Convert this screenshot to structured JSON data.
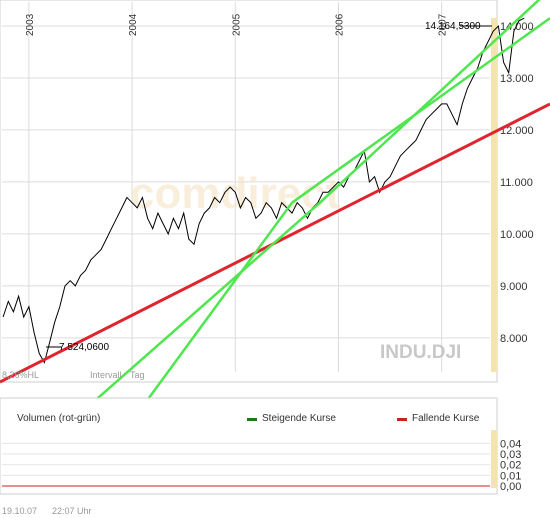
{
  "chart_data": [
    {
      "type": "line",
      "symbol": "INDU.DJI",
      "watermark": "comdirect",
      "x_ticks": [
        "2003",
        "2004",
        "2005",
        "2006",
        "2007"
      ],
      "x_tick_values": [
        2003.0,
        2004.0,
        2005.0,
        2006.0,
        2007.0
      ],
      "x_range": [
        2002.72,
        2008.05
      ],
      "y_ticks": [
        "8.000",
        "9.000",
        "10.000",
        "11.000",
        "12.000",
        "13.000",
        "14.000"
      ],
      "y_tick_values": [
        8000,
        9000,
        10000,
        11000,
        12000,
        13000,
        14000
      ],
      "ylim": [
        7150,
        14500
      ],
      "grid": true,
      "series": [
        {
          "x": [
            2002.75,
            2002.8,
            2002.85,
            2002.9,
            2002.95,
            2003.0,
            2003.05,
            2003.1,
            2003.15,
            2003.2,
            2003.25,
            2003.3,
            2003.35,
            2003.4,
            2003.45,
            2003.5,
            2003.55,
            2003.6,
            2003.65,
            2003.7,
            2003.75,
            2003.8,
            2003.85,
            2003.9,
            2003.95,
            2004.0,
            2004.05,
            2004.1,
            2004.15,
            2004.2,
            2004.25,
            2004.3,
            2004.35,
            2004.4,
            2004.45,
            2004.5,
            2004.55,
            2004.6,
            2004.65,
            2004.7,
            2004.75,
            2004.8,
            2004.85,
            2004.9,
            2004.95,
            2005.0,
            2005.05,
            2005.1,
            2005.15,
            2005.2,
            2005.25,
            2005.3,
            2005.35,
            2005.4,
            2005.45,
            2005.5,
            2005.55,
            2005.6,
            2005.65,
            2005.7,
            2005.75,
            2005.8,
            2005.85,
            2005.9,
            2005.95,
            2006.0,
            2006.05,
            2006.1,
            2006.15,
            2006.2,
            2006.25,
            2006.3,
            2006.35,
            2006.4,
            2006.45,
            2006.5,
            2006.55,
            2006.6,
            2006.65,
            2006.7,
            2006.75,
            2006.8,
            2006.85,
            2006.9,
            2006.95,
            2007.0,
            2007.05,
            2007.1,
            2007.15,
            2007.2,
            2007.25,
            2007.3,
            2007.35,
            2007.4,
            2007.45,
            2007.5,
            2007.55,
            2007.6,
            2007.65,
            2007.7,
            2007.75,
            2007.8
          ],
          "values": [
            8400,
            8700,
            8500,
            8800,
            8400,
            8600,
            8100,
            7700,
            7524,
            7900,
            8300,
            8600,
            9000,
            9100,
            9000,
            9200,
            9300,
            9500,
            9600,
            9700,
            9900,
            10100,
            10300,
            10500,
            10700,
            10600,
            10500,
            10700,
            10300,
            10100,
            10400,
            10200,
            10000,
            10300,
            10100,
            10400,
            9900,
            9800,
            10200,
            10400,
            10500,
            10700,
            10600,
            10800,
            10900,
            10800,
            10500,
            10700,
            10600,
            10300,
            10400,
            10600,
            10500,
            10300,
            10600,
            10500,
            10400,
            10600,
            10500,
            10300,
            10500,
            10600,
            10800,
            10800,
            10900,
            11000,
            10900,
            11100,
            11200,
            11400,
            11600,
            11000,
            11100,
            10800,
            11000,
            11100,
            11300,
            11500,
            11600,
            11700,
            11800,
            12000,
            12200,
            12300,
            12400,
            12500,
            12500,
            12300,
            12100,
            12500,
            12800,
            13000,
            13200,
            13500,
            13700,
            13900,
            14000,
            13300,
            13100,
            13900,
            14100,
            14150
          ]
        }
      ],
      "annotations": [
        "14.164,5300",
        "7.524,0600"
      ],
      "trendlines": [
        {
          "color": "#e0242e",
          "from": [
            2002.72,
            7150
          ],
          "to": [
            2008.05,
            12500
          ]
        },
        {
          "color": "#4fe64f",
          "from": [
            2005.82,
            10600
          ],
          "to": [
            2008.05,
            14700
          ]
        },
        {
          "color": "#4fe64f",
          "from": [
            2005.55,
            10600
          ],
          "to": [
            2008.05,
            14150
          ]
        }
      ],
      "footer_left": "8,26%HL",
      "footer_interval": "Intervall",
      "footer_tag": "Tag"
    },
    {
      "type": "bar",
      "title": "Volumen (rot-grün)",
      "legend": [
        "Steigende Kurse",
        "Fallende Kurse"
      ],
      "legend_colors": [
        "#1a7a1a",
        "#cc1f1f"
      ],
      "y_ticks": [
        "0,04",
        "0,03",
        "0,02",
        "0,01",
        "0,00"
      ],
      "y_tick_values": [
        0.04,
        0.03,
        0.02,
        0.01,
        0.0
      ],
      "ylim": [
        0.0,
        0.045
      ],
      "grid": true
    }
  ],
  "timestamp": {
    "date": "19.10.07",
    "time": "22:07 Uhr"
  },
  "colors": {
    "price_line": "#000000",
    "uptrend": "#4fe64f",
    "support": "#e0242e",
    "grid": "#dcdcdc",
    "axis_band": "#f4e4b0"
  }
}
